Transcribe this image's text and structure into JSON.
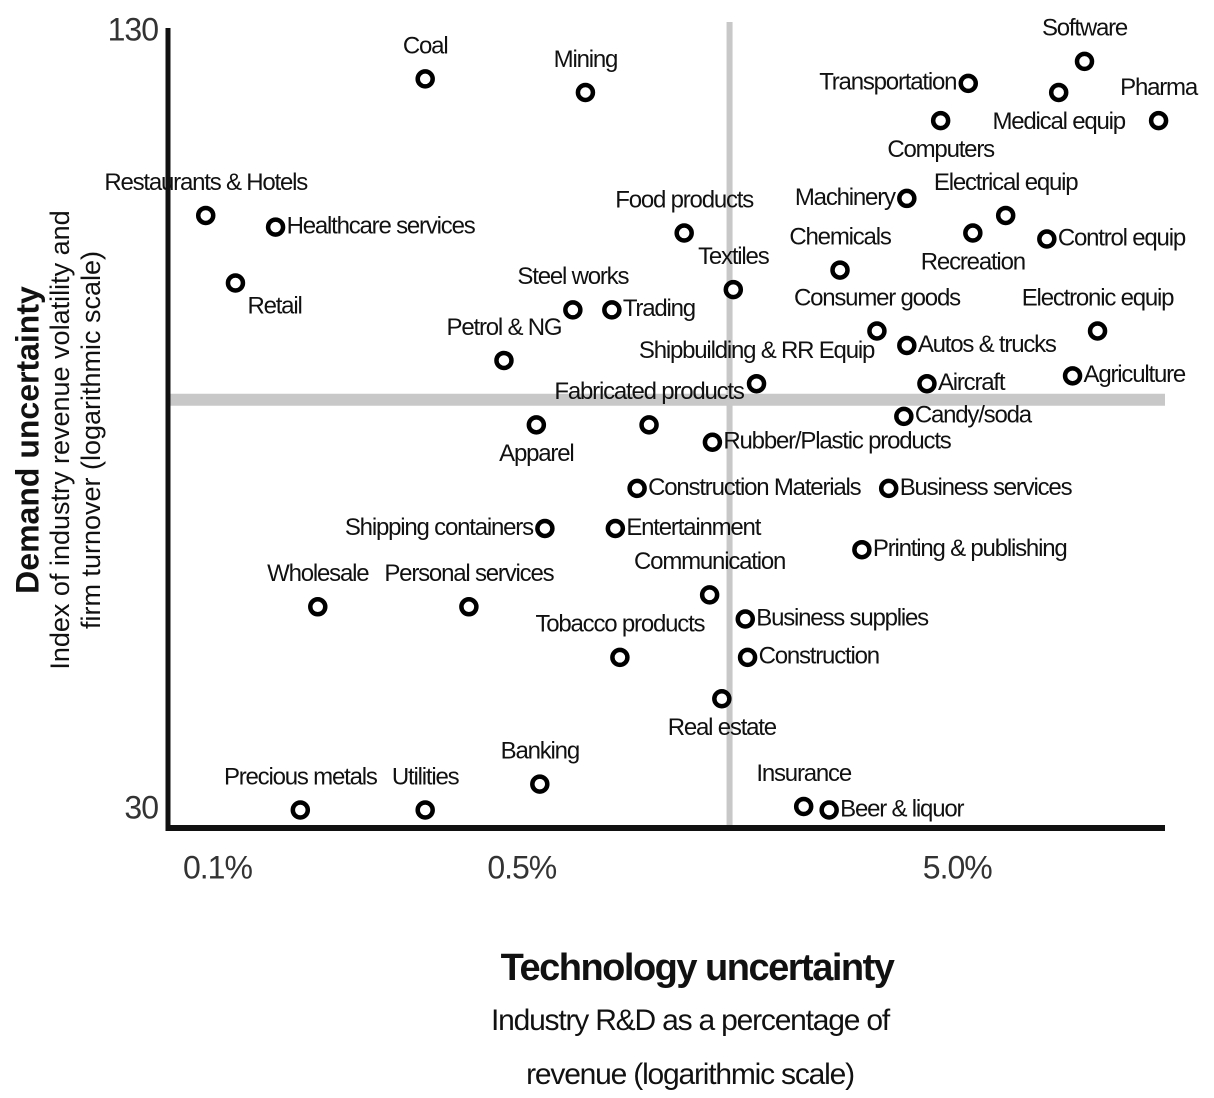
{
  "chart_data": {
    "type": "scatter",
    "x_label": "Technology uncertainty",
    "x_sublabel": [
      "Industry R&D as a percentage of",
      "revenue (logarithmic scale)"
    ],
    "y_label": "Demand uncertainty",
    "y_sublabel": [
      "Index of industry revenue volatility and",
      "firm turnover (logarithmic scale)"
    ],
    "xscale": "log",
    "yscale": "log",
    "xlim": [
      0.077,
      15
    ],
    "ylim": [
      29,
      130
    ],
    "xticks": [
      {
        "value": 0.1,
        "label": "0.1%"
      },
      {
        "value": 0.5,
        "label": "0.5%"
      },
      {
        "value": 5,
        "label": "5.0%"
      }
    ],
    "yticks": [
      30,
      130
    ],
    "reference_lines": {
      "x": 1.5,
      "y": 65
    },
    "color": "#000000",
    "labels": [
      "Coal",
      "Mining",
      "Software",
      "Transportation",
      "Medical equip",
      "Pharma",
      "Computers",
      "Restaurants & Hotels",
      "Healthcare services",
      "Retail",
      "Machinery",
      "Electrical equip",
      "Food products",
      "Chemicals",
      "Recreation",
      "Control equip",
      "Textiles",
      "Steel works",
      "Trading",
      "Consumer goods",
      "Electronic equip",
      "Petrol & NG",
      "Autos & trucks",
      "Shipbuilding & RR Equip",
      "Aircraft",
      "Agriculture",
      "Apparel",
      "Fabricated products",
      "Candy/soda",
      "Rubber/Plastic products",
      "Construction Materials",
      "Business services",
      "Shipping containers",
      "Entertainment",
      "Printing & publishing",
      "Wholesale",
      "Personal services",
      "Communication",
      "Business supplies",
      "Tobacco products",
      "Construction",
      "Real estate",
      "Banking",
      "Precious metals",
      "Utilities",
      "Insurance",
      "Beer & liquor"
    ],
    "x": [
      0.3,
      0.7,
      9.8,
      5.3,
      8.55,
      14.5,
      4.58,
      0.094,
      0.136,
      0.11,
      3.83,
      6.46,
      1.18,
      2.69,
      5.43,
      8.03,
      1.53,
      0.655,
      0.805,
      3.27,
      10.5,
      0.455,
      3.83,
      1.73,
      4.26,
      9.2,
      0.54,
      0.98,
      3.77,
      1.37,
      0.92,
      3.48,
      0.565,
      0.82,
      3.02,
      0.17,
      0.378,
      1.35,
      1.63,
      0.84,
      1.65,
      1.44,
      0.55,
      0.155,
      0.3,
      2.22,
      2.54
    ],
    "y": [
      119,
      116,
      123,
      118,
      116,
      110,
      110,
      92,
      90,
      81,
      95,
      92,
      89,
      83,
      89,
      88,
      80,
      77,
      77,
      74,
      74,
      70,
      72,
      67,
      67,
      68,
      62,
      62,
      63,
      60,
      55,
      55,
      51,
      51,
      49,
      44,
      44,
      45,
      43,
      40,
      40,
      37,
      31.5,
      30,
      30,
      30.2,
      30
    ]
  }
}
